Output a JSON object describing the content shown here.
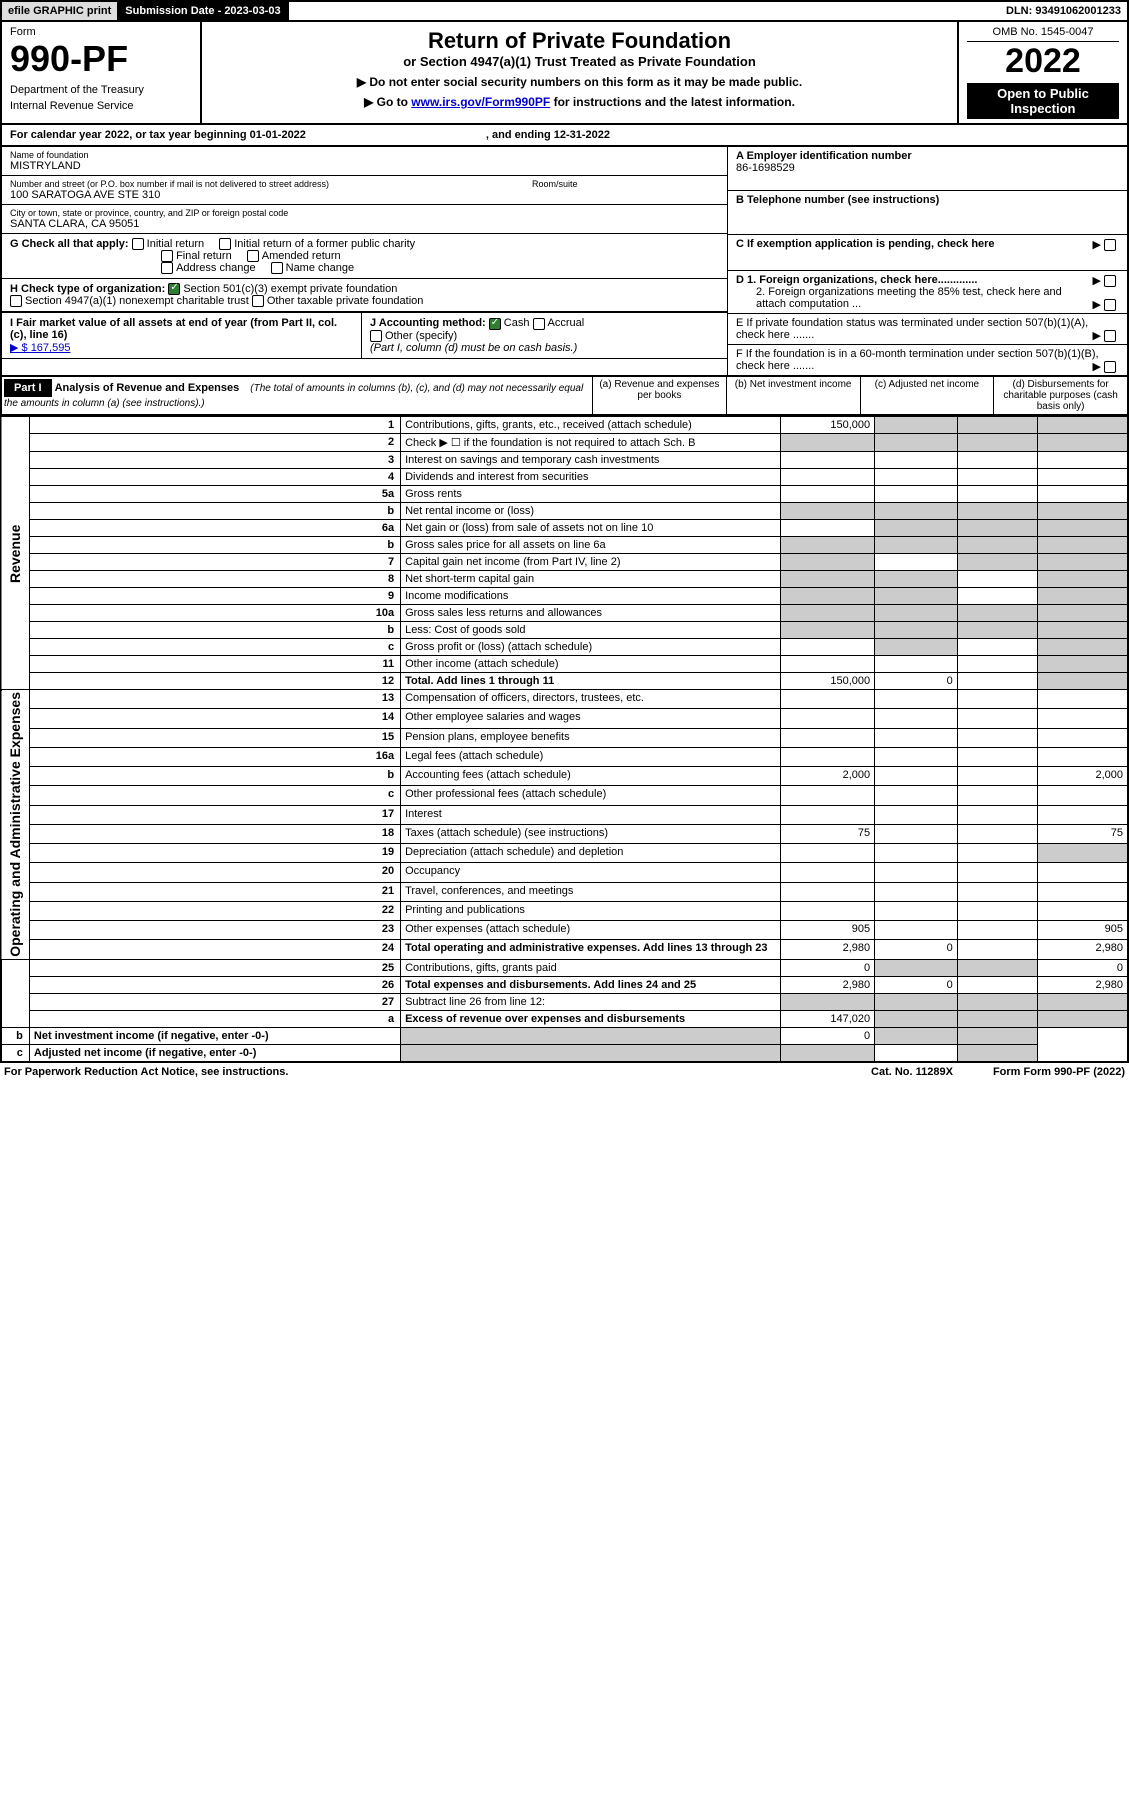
{
  "topbar": {
    "efile": "efile GRAPHIC print",
    "submission": "Submission Date - 2023-03-03",
    "dln": "DLN: 93491062001233"
  },
  "header": {
    "form_label": "Form",
    "form_number": "990-PF",
    "dept": "Department of the Treasury",
    "irs": "Internal Revenue Service",
    "title": "Return of Private Foundation",
    "subtitle": "or Section 4947(a)(1) Trust Treated as Private Foundation",
    "instr1": "▶ Do not enter social security numbers on this form as it may be made public.",
    "instr2_pre": "▶ Go to ",
    "instr2_link": "www.irs.gov/Form990PF",
    "instr2_post": " for instructions and the latest information.",
    "omb": "OMB No. 1545-0047",
    "year": "2022",
    "open": "Open to Public Inspection"
  },
  "calendar": {
    "text": "For calendar year 2022, or tax year beginning 01-01-2022",
    "ending": ", and ending 12-31-2022"
  },
  "foundation": {
    "name_label": "Name of foundation",
    "name": "MISTRYLAND",
    "addr_label": "Number and street (or P.O. box number if mail is not delivered to street address)",
    "addr": "100 SARATOGA AVE STE 310",
    "room_label": "Room/suite",
    "city_label": "City or town, state or province, country, and ZIP or foreign postal code",
    "city": "SANTA CLARA, CA  95051",
    "ein_label": "A Employer identification number",
    "ein": "86-1698529",
    "phone_label": "B Telephone number (see instructions)",
    "c_label": "C If exemption application is pending, check here",
    "d1": "D 1. Foreign organizations, check here.............",
    "d2": "2. Foreign organizations meeting the 85% test, check here and attach computation ...",
    "e_label": "E  If private foundation status was terminated under section 507(b)(1)(A), check here .......",
    "f_label": "F  If the foundation is in a 60-month termination under section 507(b)(1)(B), check here .......",
    "g_label": "G Check all that apply:",
    "g_initial": "Initial return",
    "g_initial_former": "Initial return of a former public charity",
    "g_final": "Final return",
    "g_amended": "Amended return",
    "g_address": "Address change",
    "g_name": "Name change",
    "h_label": "H Check type of organization:",
    "h_501": "Section 501(c)(3) exempt private foundation",
    "h_4947": "Section 4947(a)(1) nonexempt charitable trust",
    "h_other": "Other taxable private foundation",
    "i_label": "I Fair market value of all assets at end of year (from Part II, col. (c), line 16)",
    "i_val": "▶ $  167,595",
    "j_label": "J Accounting method:",
    "j_cash": "Cash",
    "j_accrual": "Accrual",
    "j_other": "Other (specify)",
    "j_note": "(Part I, column (d) must be on cash basis.)"
  },
  "part1": {
    "label": "Part I",
    "title": "Analysis of Revenue and Expenses",
    "note": "(The total of amounts in columns (b), (c), and (d) may not necessarily equal the amounts in column (a) (see instructions).)",
    "col_a": "(a)   Revenue and expenses per books",
    "col_b": "(b)   Net investment income",
    "col_c": "(c)   Adjusted net income",
    "col_d": "(d)   Disbursements for charitable purposes (cash basis only)",
    "side_rev": "Revenue",
    "side_exp": "Operating and Administrative Expenses"
  },
  "rows": [
    {
      "n": "1",
      "d": "Contributions, gifts, grants, etc., received (attach schedule)",
      "a": "150,000",
      "grey_b": true,
      "grey_c": true,
      "grey_d": true
    },
    {
      "n": "2",
      "d": "Check ▶ ☐ if the foundation is not required to attach Sch. B",
      "dots": true,
      "grey_all": true
    },
    {
      "n": "3",
      "d": "Interest on savings and temporary cash investments"
    },
    {
      "n": "4",
      "d": "Dividends and interest from securities",
      "dots": true
    },
    {
      "n": "5a",
      "d": "Gross rents",
      "dots": true
    },
    {
      "n": "b",
      "d": "Net rental income or (loss)",
      "grey_all": true,
      "inline_box": true
    },
    {
      "n": "6a",
      "d": "Net gain or (loss) from sale of assets not on line 10",
      "grey_b": true,
      "grey_c": true,
      "grey_d": true
    },
    {
      "n": "b",
      "d": "Gross sales price for all assets on line 6a",
      "grey_all": true,
      "inline_box": true
    },
    {
      "n": "7",
      "d": "Capital gain net income (from Part IV, line 2)",
      "dots": true,
      "grey_a": true,
      "grey_c": true,
      "grey_d": true
    },
    {
      "n": "8",
      "d": "Net short-term capital gain",
      "dots": true,
      "grey_a": true,
      "grey_b": true,
      "grey_d": true
    },
    {
      "n": "9",
      "d": "Income modifications",
      "dots": true,
      "grey_a": true,
      "grey_b": true,
      "grey_d": true
    },
    {
      "n": "10a",
      "d": "Gross sales less returns and allowances",
      "grey_all": true,
      "inline_box": true
    },
    {
      "n": "b",
      "d": "Less: Cost of goods sold",
      "dots": true,
      "grey_all": true,
      "inline_box": true
    },
    {
      "n": "c",
      "d": "Gross profit or (loss) (attach schedule)",
      "dots": true,
      "grey_b": true,
      "grey_d": true
    },
    {
      "n": "11",
      "d": "Other income (attach schedule)",
      "dots": true,
      "grey_d": true
    },
    {
      "n": "12",
      "d": "Total. Add lines 1 through 11",
      "dots": true,
      "bold": true,
      "a": "150,000",
      "b": "0",
      "grey_d": true
    },
    {
      "n": "13",
      "d": "Compensation of officers, directors, trustees, etc."
    },
    {
      "n": "14",
      "d": "Other employee salaries and wages",
      "dots": true
    },
    {
      "n": "15",
      "d": "Pension plans, employee benefits",
      "dots": true
    },
    {
      "n": "16a",
      "d": "Legal fees (attach schedule)",
      "dots": true
    },
    {
      "n": "b",
      "d": "Accounting fees (attach schedule)",
      "dots": true,
      "a": "2,000",
      "dd": "2,000"
    },
    {
      "n": "c",
      "d": "Other professional fees (attach schedule)",
      "dots": true
    },
    {
      "n": "17",
      "d": "Interest",
      "dots": true
    },
    {
      "n": "18",
      "d": "Taxes (attach schedule) (see instructions)",
      "dots": true,
      "a": "75",
      "dd": "75"
    },
    {
      "n": "19",
      "d": "Depreciation (attach schedule) and depletion",
      "dots": true,
      "grey_d": true
    },
    {
      "n": "20",
      "d": "Occupancy",
      "dots": true
    },
    {
      "n": "21",
      "d": "Travel, conferences, and meetings",
      "dots": true
    },
    {
      "n": "22",
      "d": "Printing and publications",
      "dots": true
    },
    {
      "n": "23",
      "d": "Other expenses (attach schedule)",
      "dots": true,
      "a": "905",
      "dd": "905"
    },
    {
      "n": "24",
      "d": "Total operating and administrative expenses. Add lines 13 through 23",
      "dots": true,
      "bold": true,
      "a": "2,980",
      "b": "0",
      "dd": "2,980"
    },
    {
      "n": "25",
      "d": "Contributions, gifts, grants paid",
      "dots": true,
      "a": "0",
      "grey_b": true,
      "grey_c": true,
      "dd": "0"
    },
    {
      "n": "26",
      "d": "Total expenses and disbursements. Add lines 24 and 25",
      "bold": true,
      "a": "2,980",
      "b": "0",
      "dd": "2,980"
    },
    {
      "n": "27",
      "d": "Subtract line 26 from line 12:",
      "grey_all": true
    },
    {
      "n": "a",
      "d": "Excess of revenue over expenses and disbursements",
      "bold": true,
      "a": "147,020",
      "grey_b": true,
      "grey_c": true,
      "grey_d": true
    },
    {
      "n": "b",
      "d": "Net investment income (if negative, enter -0-)",
      "bold": true,
      "grey_a": true,
      "b": "0",
      "grey_c": true,
      "grey_d": true
    },
    {
      "n": "c",
      "d": "Adjusted net income (if negative, enter -0-)",
      "dots": true,
      "bold": true,
      "grey_a": true,
      "grey_b": true,
      "grey_d": true
    }
  ],
  "footer": {
    "left": "For Paperwork Reduction Act Notice, see instructions.",
    "cat": "Cat. No. 11289X",
    "form": "Form 990-PF (2022)"
  }
}
